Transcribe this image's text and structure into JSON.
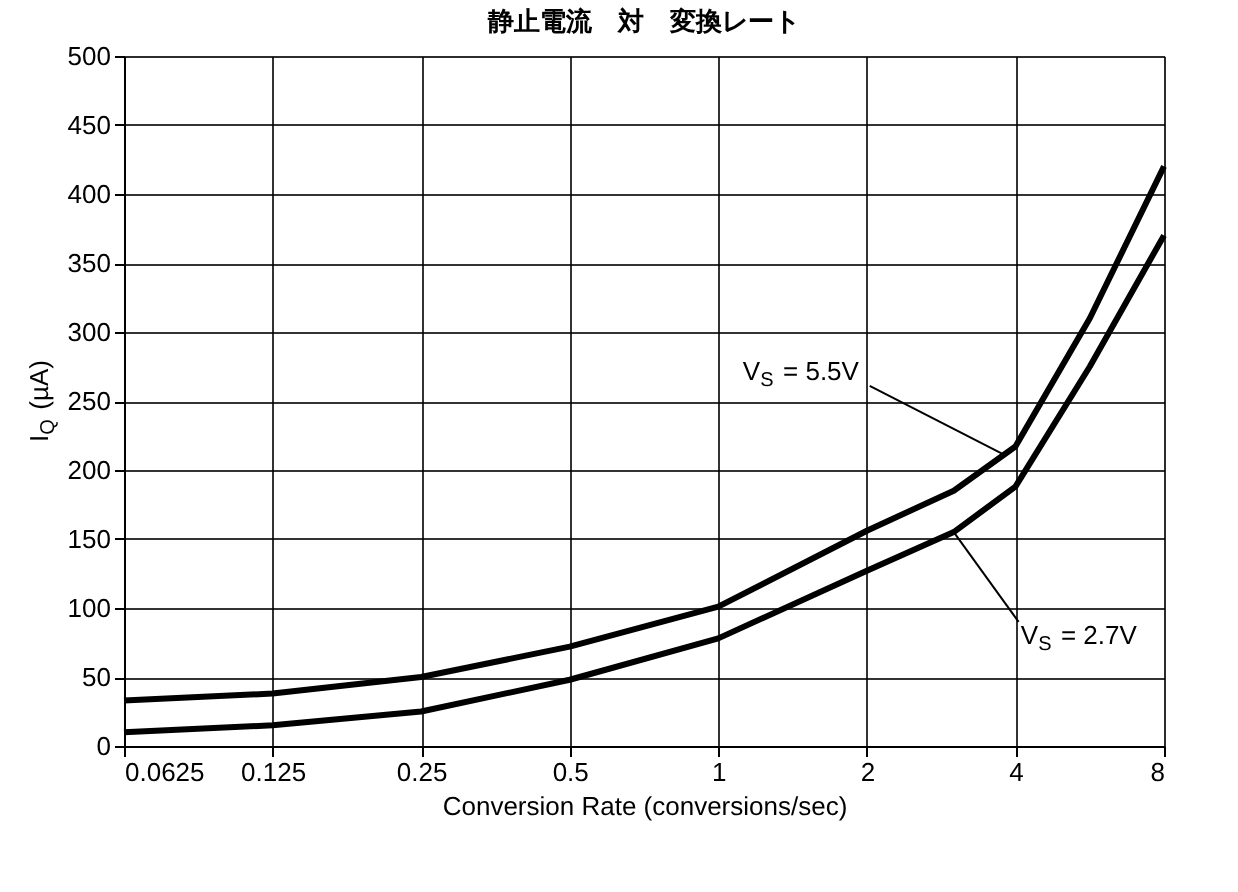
{
  "chart_data": {
    "type": "line",
    "title": "静止電流　対　変換レート",
    "xlabel": "Conversion Rate (conversions/sec)",
    "ylabel": "I$_{Q}$ (µA)",
    "log": "x",
    "grid": true,
    "legend": false,
    "line_style": "solid",
    "marker": "none",
    "xlim": [
      0.0625,
      8
    ],
    "xticks": [
      0.0625,
      0.125,
      0.25,
      0.5,
      1,
      2,
      4,
      8
    ],
    "ylim": [
      0,
      500
    ],
    "yticks": [
      0,
      50,
      100,
      150,
      200,
      250,
      300,
      350,
      400,
      450,
      500
    ],
    "x": [
      0.0625,
      0.125,
      0.25,
      0.5,
      1,
      2,
      3,
      4,
      5.66,
      8
    ],
    "series": [
      {
        "color": "#000000",
        "values": [
          33,
          38,
          50,
          72,
          101,
          156,
          185,
          217,
          310,
          420
        ]
      },
      {
        "color": "#000000",
        "values": [
          10,
          15,
          25,
          48,
          78,
          127,
          155,
          188,
          275,
          370
        ]
      }
    ],
    "annotations": [
      {
        "text": "V$_{S}$ = 5.5V",
        "x": 3.8,
        "y": 211
      },
      {
        "text": "V$_{S}$ = 2.7V",
        "x": 3.0,
        "y": 155
      }
    ]
  }
}
